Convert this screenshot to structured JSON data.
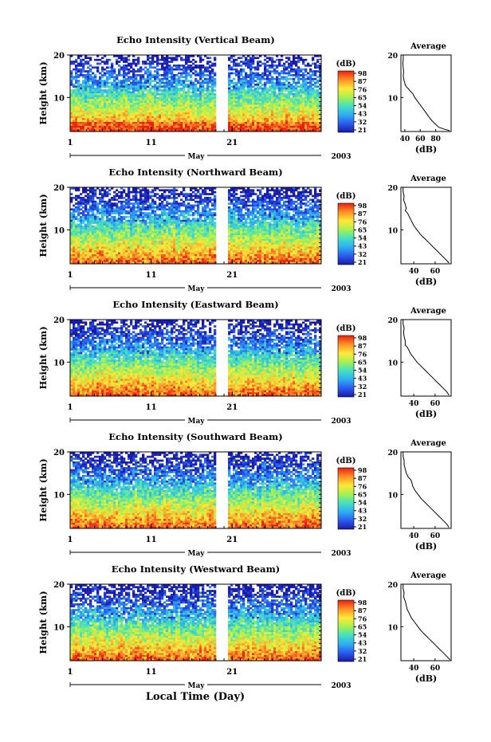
{
  "figure": {
    "bottom_xlabel": "Local Time (Day)",
    "month_label": "May",
    "year_label": "2003",
    "colorbar_unit": "(dB)",
    "colorbar_ticks": [
      "98",
      "87",
      "76",
      "65",
      "54",
      "43",
      "32",
      "21"
    ],
    "profile_title": "Average",
    "profile_xlabel": "(dB)"
  },
  "chart_data": [
    {
      "type": "heatmap",
      "title": "Echo Intensity (Vertical Beam)",
      "ylabel": "Height (km)",
      "ylim": [
        2,
        20
      ],
      "yticks": [
        "10",
        "20"
      ],
      "xticks": [
        "1",
        "11",
        "21"
      ],
      "xlim_days": [
        1,
        32
      ],
      "data_gap_days": [
        19.2,
        20.3
      ],
      "colorbar_range_db": [
        21,
        98
      ],
      "colorscale": [
        "#1a1aa8",
        "#2a5cf0",
        "#2fb0f0",
        "#45e0c0",
        "#a8f050",
        "#ffe838",
        "#ff9028",
        "#e82010"
      ],
      "profile": {
        "xlim": [
          35,
          100
        ],
        "xticks": [
          "40",
          "60",
          "80"
        ],
        "points": [
          [
            38,
            20
          ],
          [
            38,
            19
          ],
          [
            37.5,
            18
          ],
          [
            38,
            17
          ],
          [
            38.5,
            16
          ],
          [
            38,
            15
          ],
          [
            39,
            14
          ],
          [
            40,
            13.5
          ],
          [
            40.5,
            13
          ],
          [
            42,
            12.5
          ],
          [
            45,
            12
          ],
          [
            47,
            11.5
          ],
          [
            50,
            11
          ],
          [
            53,
            10
          ],
          [
            57,
            9
          ],
          [
            61,
            8
          ],
          [
            65,
            7
          ],
          [
            69,
            6
          ],
          [
            73,
            5
          ],
          [
            78,
            4
          ],
          [
            84,
            3
          ],
          [
            92,
            2.5
          ],
          [
            98,
            2.2
          ]
        ]
      }
    },
    {
      "type": "heatmap",
      "title": "Echo Intensity (Northward Beam)",
      "ylabel": "Height (km)",
      "ylim": [
        2,
        20
      ],
      "yticks": [
        "10",
        "20"
      ],
      "xticks": [
        "1",
        "11",
        "21"
      ],
      "xlim_days": [
        1,
        32
      ],
      "data_gap_days": [
        19.2,
        20.3
      ],
      "colorbar_range_db": [
        21,
        98
      ],
      "colorscale": [
        "#1a1aa8",
        "#2a5cf0",
        "#2fb0f0",
        "#45e0c0",
        "#a8f050",
        "#ffe838",
        "#ff9028",
        "#e82010"
      ],
      "profile": {
        "xlim": [
          28,
          75
        ],
        "xticks": [
          "40",
          "60"
        ],
        "points": [
          [
            30,
            20
          ],
          [
            30,
            19
          ],
          [
            31,
            18
          ],
          [
            30.5,
            17
          ],
          [
            32,
            16
          ],
          [
            33,
            15
          ],
          [
            32,
            14.5
          ],
          [
            34,
            14
          ],
          [
            35,
            13.5
          ],
          [
            36,
            13
          ],
          [
            38,
            12
          ],
          [
            40,
            11
          ],
          [
            43,
            10
          ],
          [
            46,
            9
          ],
          [
            50,
            8
          ],
          [
            54,
            7
          ],
          [
            58,
            6
          ],
          [
            62,
            5
          ],
          [
            66,
            4
          ],
          [
            70,
            3
          ],
          [
            73,
            2.2
          ]
        ]
      }
    },
    {
      "type": "heatmap",
      "title": "Echo Intensity (Eastward Beam)",
      "ylabel": "Height (km)",
      "ylim": [
        2,
        20
      ],
      "yticks": [
        "10",
        "20"
      ],
      "xticks": [
        "1",
        "11",
        "21"
      ],
      "xlim_days": [
        1,
        32
      ],
      "data_gap_days": [
        19.2,
        20.3
      ],
      "colorbar_range_db": [
        21,
        98
      ],
      "colorscale": [
        "#1a1aa8",
        "#2a5cf0",
        "#2fb0f0",
        "#45e0c0",
        "#a8f050",
        "#ffe838",
        "#ff9028",
        "#e82010"
      ],
      "profile": {
        "xlim": [
          28,
          75
        ],
        "xticks": [
          "40",
          "60"
        ],
        "points": [
          [
            30,
            20
          ],
          [
            30,
            19
          ],
          [
            31,
            18
          ],
          [
            30.5,
            17
          ],
          [
            31,
            16
          ],
          [
            32,
            15
          ],
          [
            32,
            14
          ],
          [
            34,
            13.5
          ],
          [
            35,
            13
          ],
          [
            37,
            12
          ],
          [
            40,
            11
          ],
          [
            43,
            10
          ],
          [
            47,
            9
          ],
          [
            51,
            8
          ],
          [
            55,
            7
          ],
          [
            59,
            6
          ],
          [
            63,
            5
          ],
          [
            67,
            4
          ],
          [
            71,
            3
          ],
          [
            73,
            2.2
          ]
        ]
      }
    },
    {
      "type": "heatmap",
      "title": "Echo Intensity (Southward Beam)",
      "ylabel": "Height (km)",
      "ylim": [
        2,
        20
      ],
      "yticks": [
        "10",
        "20"
      ],
      "xticks": [
        "1",
        "11",
        "21"
      ],
      "xlim_days": [
        1,
        32
      ],
      "data_gap_days": [
        19.2,
        20.3
      ],
      "colorbar_range_db": [
        21,
        98
      ],
      "colorscale": [
        "#1a1aa8",
        "#2a5cf0",
        "#2fb0f0",
        "#45e0c0",
        "#a8f050",
        "#ffe838",
        "#ff9028",
        "#e82010"
      ],
      "profile": {
        "xlim": [
          28,
          75
        ],
        "xticks": [
          "40",
          "60"
        ],
        "points": [
          [
            30,
            20
          ],
          [
            30,
            19
          ],
          [
            31,
            18
          ],
          [
            31,
            17
          ],
          [
            32,
            16
          ],
          [
            33,
            15
          ],
          [
            34,
            14.5
          ],
          [
            35,
            14
          ],
          [
            37,
            13.5
          ],
          [
            38,
            13
          ],
          [
            39,
            12
          ],
          [
            41,
            11
          ],
          [
            44,
            10
          ],
          [
            47,
            9
          ],
          [
            51,
            8
          ],
          [
            55,
            7
          ],
          [
            59,
            6
          ],
          [
            63,
            5
          ],
          [
            67,
            4
          ],
          [
            71,
            3
          ],
          [
            73,
            2.2
          ]
        ]
      }
    },
    {
      "type": "heatmap",
      "title": "Echo Intensity (Westward Beam)",
      "ylabel": "Height (km)",
      "ylim": [
        2,
        20
      ],
      "yticks": [
        "10",
        "20"
      ],
      "xticks": [
        "1",
        "11",
        "21"
      ],
      "xlim_days": [
        1,
        32
      ],
      "data_gap_days": [
        19.2,
        20.3
      ],
      "colorbar_range_db": [
        21,
        98
      ],
      "colorscale": [
        "#1a1aa8",
        "#2a5cf0",
        "#2fb0f0",
        "#45e0c0",
        "#a8f050",
        "#ffe838",
        "#ff9028",
        "#e82010"
      ],
      "profile": {
        "xlim": [
          28,
          75
        ],
        "xticks": [
          "40",
          "60"
        ],
        "points": [
          [
            30,
            20
          ],
          [
            30,
            19
          ],
          [
            31,
            18
          ],
          [
            30.5,
            17
          ],
          [
            32,
            16
          ],
          [
            33,
            15
          ],
          [
            34,
            14
          ],
          [
            35,
            13.5
          ],
          [
            36,
            13
          ],
          [
            38,
            12
          ],
          [
            41,
            11
          ],
          [
            44,
            10
          ],
          [
            47,
            9
          ],
          [
            51,
            8
          ],
          [
            55,
            7
          ],
          [
            59,
            6
          ],
          [
            63,
            5
          ],
          [
            67,
            4
          ],
          [
            71,
            3
          ],
          [
            74,
            2.2
          ]
        ]
      }
    }
  ]
}
